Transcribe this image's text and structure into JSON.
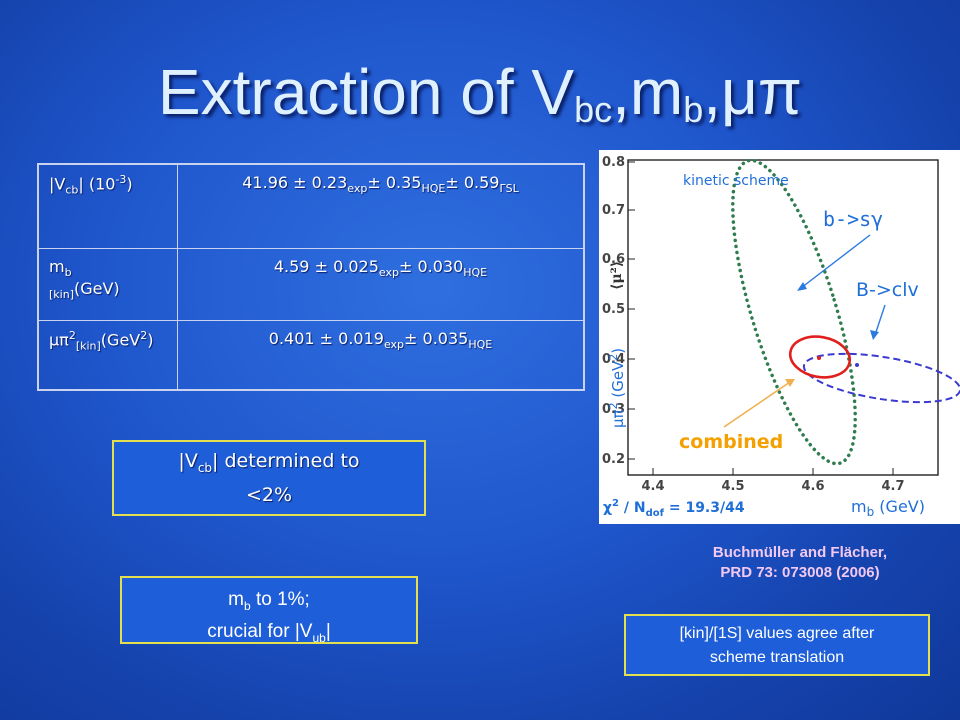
{
  "slide": {
    "title_main": "Extraction of  V",
    "title_sub1": "bc",
    "title_mid": ",m",
    "title_sub2": "b",
    "title_end": ",μπ"
  },
  "table": {
    "rows": [
      {
        "label": {
          "a": "|V",
          "b": "cb",
          "c": "| (10",
          "d": "-3",
          "e": ")"
        },
        "value": {
          "a": "41.96 ± 0.23",
          "b": "exp",
          "c": "± 0.35",
          "d": "HQE",
          "e": "± 0.59",
          "f": "ΓSL"
        }
      },
      {
        "label": {
          "a": "m",
          "b": "b",
          "c": "[kin]",
          "d": "(GeV)"
        },
        "value": {
          "a": "4.59 ± 0.025",
          "b": "exp",
          "c": "± 0.030",
          "d": "HQE"
        }
      },
      {
        "label": {
          "a": "μπ",
          "b": "2",
          "c": "[kin]",
          "d": "(GeV",
          "e": "2",
          "f": ")"
        },
        "value": {
          "a": "0.401 ± 0.019",
          "b": "exp",
          "c": "± 0.035",
          "d": "HQE"
        }
      }
    ]
  },
  "boxes": {
    "vcb": {
      "a": "|V",
      "b": "cb",
      "c": "| determined to",
      "d": "<2%"
    },
    "mb": {
      "a": "m",
      "b": "b",
      "c": " to 1%;",
      "d": "crucial for |V",
      "e": "ub",
      "f": "|"
    },
    "kin": {
      "line1": "[kin]/[1S] values agree after",
      "line2": "scheme translation"
    }
  },
  "citation": {
    "line1": "Buchmüller and Flächer,",
    "line2": "PRD 73: 073008  (2006)"
  },
  "plot": {
    "label_scheme": "kinetic scheme",
    "label_bsg": "b->sγ",
    "label_blnu": "B->clv",
    "label_combined": "combined",
    "xlabel_a": "m",
    "xlabel_b": "b",
    "xlabel_c": " (GeV)",
    "ylabel_a": "μπ",
    "ylabel_b": "2",
    "ylabel_c": " (GeV",
    "ylabel_d": "2",
    "ylabel_e": ")",
    "chi2_a": "χ",
    "chi2_b": "2",
    "chi2_c": " / N",
    "chi2_d": "dof",
    "chi2_e": " = 19.3/44",
    "frame_label": "⟨μ²⟩",
    "xticks": [
      "4.4",
      "4.5",
      "4.6",
      "4.7"
    ],
    "yticks": [
      "0.2",
      "0.3",
      "0.4",
      "0.5",
      "0.6",
      "0.7",
      "0.8"
    ],
    "colors": {
      "bsg": "#2e7d4f",
      "blnu": "#3a3ad0",
      "combined": "#e0201e",
      "arrow_blue": "#2a7ae0",
      "arrow_orange": "#f0b050",
      "combined_text": "#f5a000"
    }
  }
}
